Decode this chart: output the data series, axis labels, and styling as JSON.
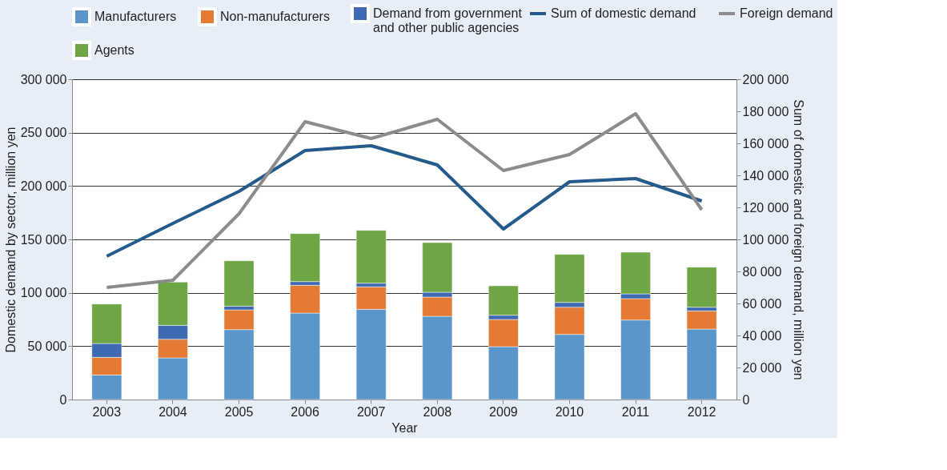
{
  "chart_data": {
    "type": "bar",
    "stacked": true,
    "xlabel": "Year",
    "ylabel": "Domestic demand by sector, million yen",
    "y2label": "Sum of domestic and foreign demand, million yen",
    "categories": [
      "2003",
      "2004",
      "2005",
      "2006",
      "2007",
      "2008",
      "2009",
      "2010",
      "2011",
      "2012"
    ],
    "series": [
      {
        "name": "Manufacturers",
        "color": "#5b96cb",
        "values": [
          23000,
          39000,
          65500,
          81000,
          84500,
          78000,
          49500,
          61000,
          74500,
          66000
        ]
      },
      {
        "name": "Non-manufacturers",
        "color": "#e47a34",
        "values": [
          16500,
          17500,
          18500,
          26000,
          21000,
          18000,
          25500,
          25500,
          20000,
          17000
        ]
      },
      {
        "name": "Demand from government and other public agencies",
        "color": "#3f6ab3",
        "values": [
          13000,
          13000,
          3500,
          3500,
          3500,
          4500,
          4000,
          4500,
          4500,
          3500
        ]
      },
      {
        "name": "Agents",
        "color": "#6fa645",
        "values": [
          37000,
          40500,
          42500,
          45000,
          49500,
          46500,
          27500,
          45000,
          39000,
          37500
        ]
      },
      {
        "name": "Sum of domestic demand",
        "color": "#245b8c",
        "type": "line",
        "axis": "y2",
        "values": [
          89500,
          110000,
          130000,
          155500,
          158500,
          146500,
          106500,
          136000,
          138000,
          124000
        ]
      },
      {
        "name": "Foreign demand",
        "color": "#8c8c8c",
        "type": "line",
        "axis": "y2",
        "values": [
          70000,
          74500,
          116000,
          173500,
          163000,
          175000,
          143000,
          153000,
          178500,
          118500
        ]
      }
    ],
    "ylim": [
      0,
      300000
    ],
    "yticks": [
      0,
      {
        "value": 50000,
        "label": "50 000"
      },
      {
        "value": 100000,
        "label": "100 000"
      },
      {
        "value": 150000,
        "label": "150 000"
      },
      {
        "value": 200000,
        "label": "200 000"
      },
      {
        "value": 250000,
        "label": "250 000"
      },
      {
        "value": 300000,
        "label": "300 000"
      }
    ],
    "y2lim": [
      0,
      200000
    ],
    "y2ticks": [
      0,
      {
        "value": 20000,
        "label": "20 000"
      },
      {
        "value": 40000,
        "label": "40 000"
      },
      {
        "value": 60000,
        "label": "60 000"
      },
      {
        "value": 80000,
        "label": "80 000"
      },
      {
        "value": 100000,
        "label": "100 000"
      },
      {
        "value": 120000,
        "label": "120 000"
      },
      {
        "value": 140000,
        "label": "140 000"
      },
      {
        "value": 160000,
        "label": "160 000"
      },
      {
        "value": 180000,
        "label": "180 000"
      },
      {
        "value": 200000,
        "label": "200 000"
      }
    ],
    "grid": "y",
    "legend": "top",
    "line_style": "solid",
    "marker": "none"
  }
}
